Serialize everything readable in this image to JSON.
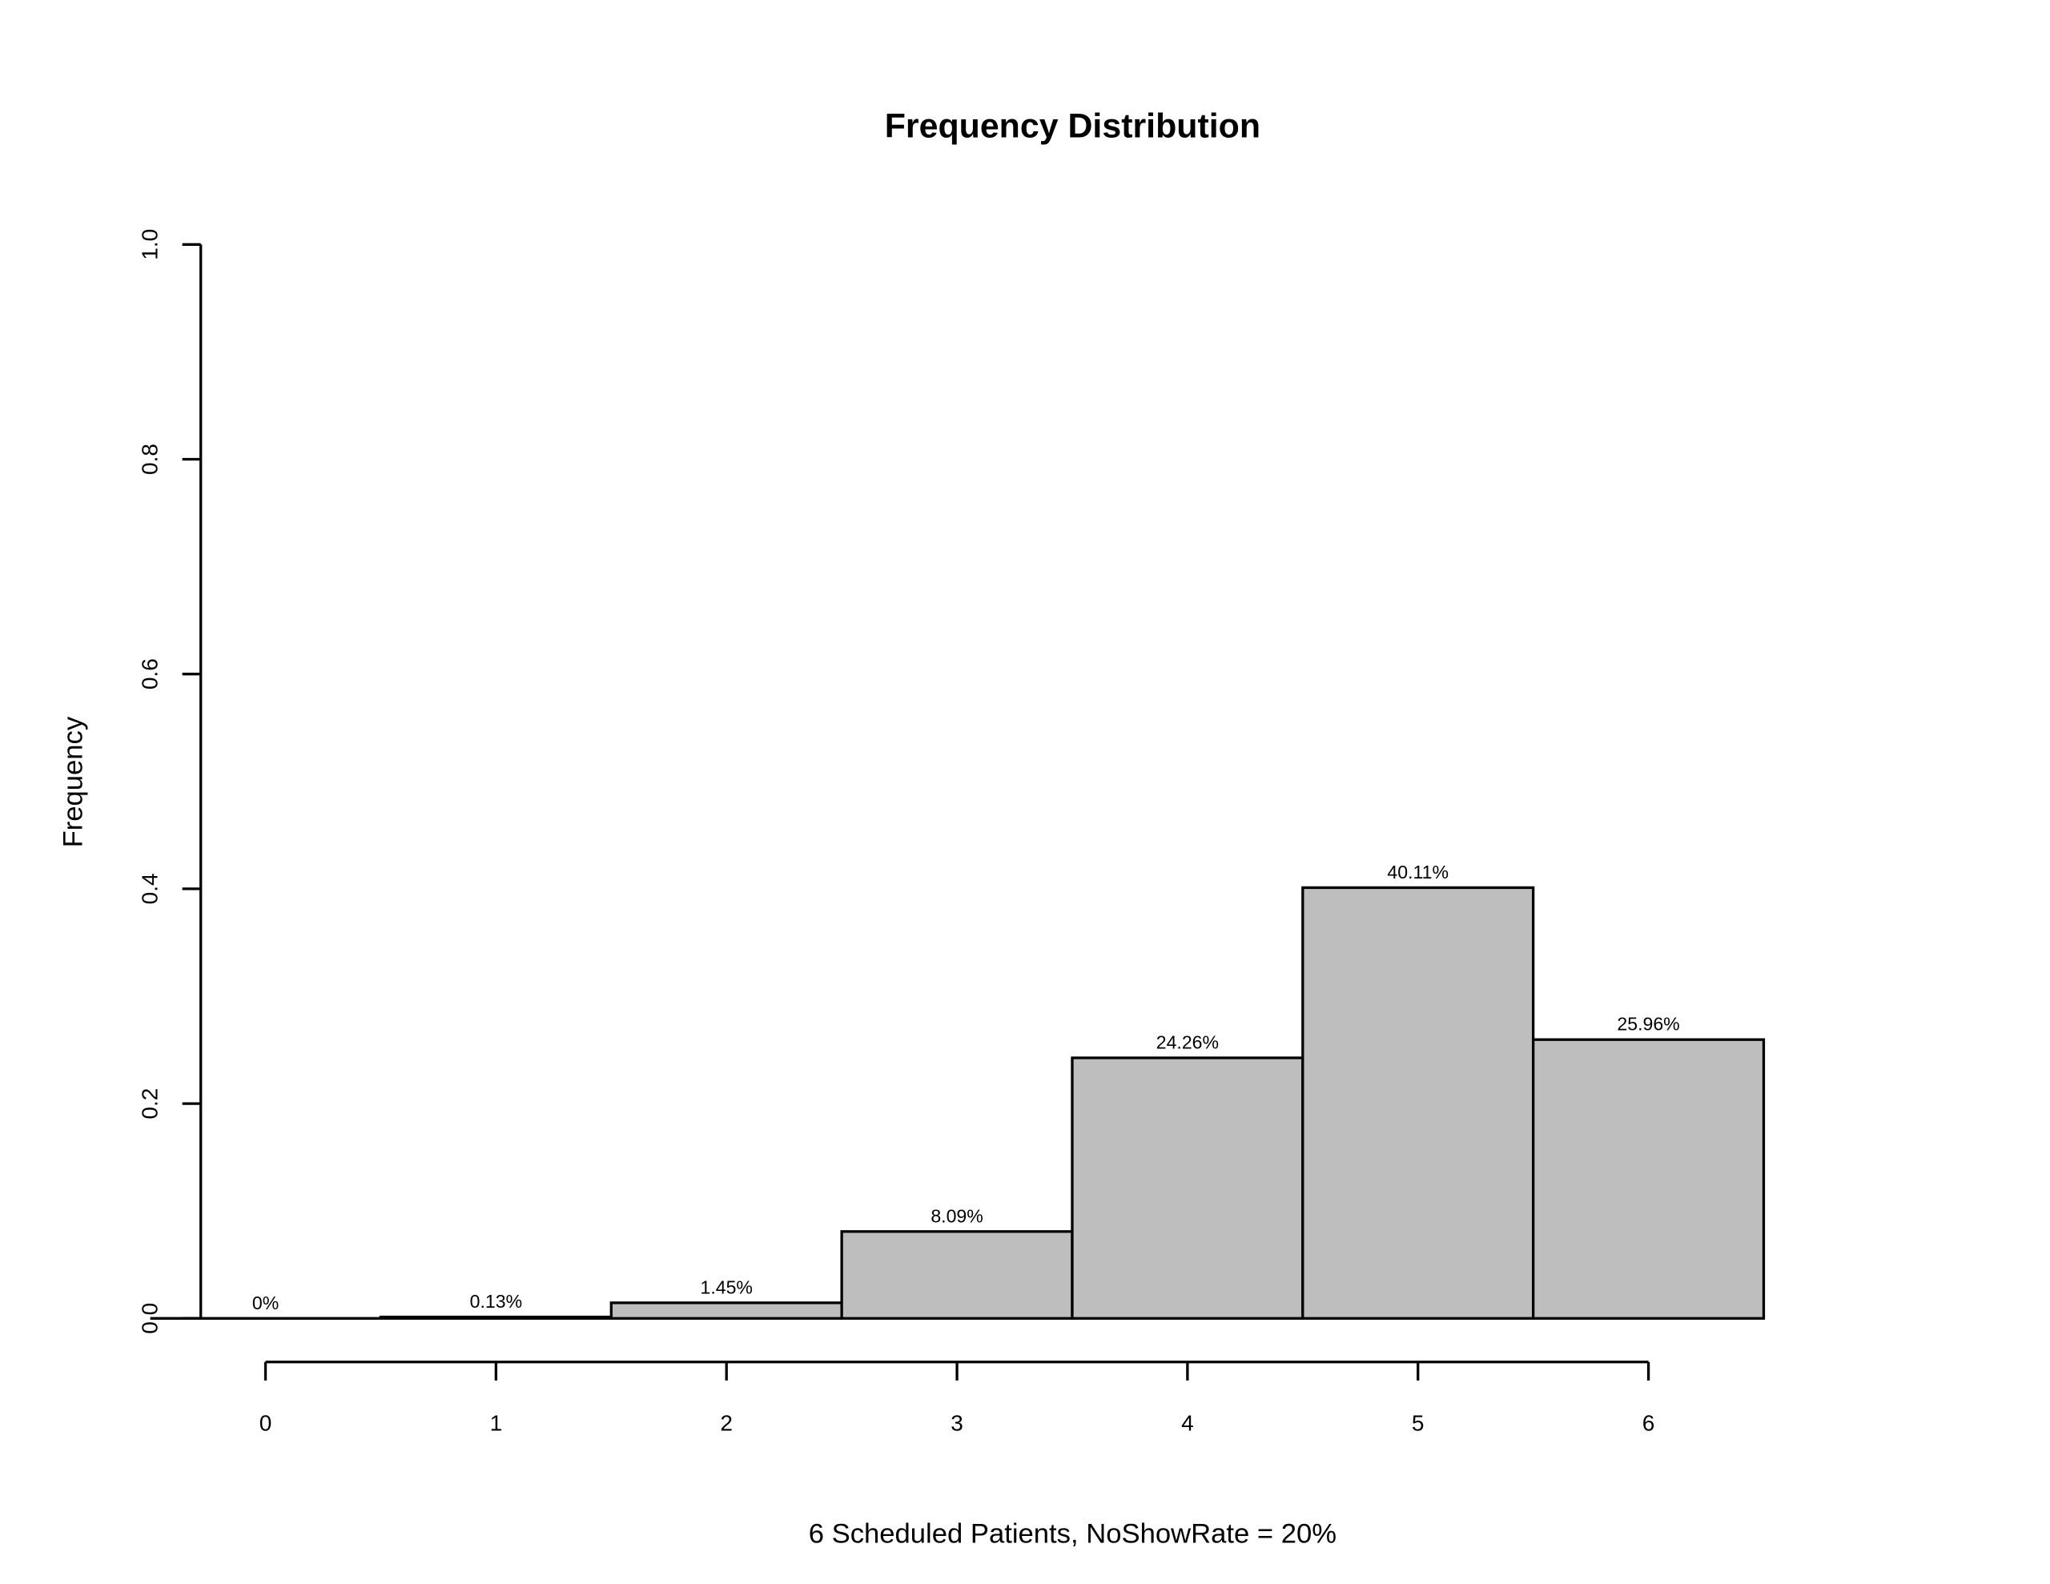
{
  "chart_data": {
    "type": "bar",
    "title": "Frequency Distribution",
    "xlabel": "6 Scheduled Patients,  NoShowRate = 20%",
    "ylabel": "Frequency",
    "categories": [
      "0",
      "1",
      "2",
      "3",
      "4",
      "5",
      "6"
    ],
    "values": [
      0,
      0.0013,
      0.0145,
      0.0809,
      0.2426,
      0.4011,
      0.2596
    ],
    "data_labels": [
      "0%",
      "0.13%",
      "1.45%",
      "8.09%",
      "24.26%",
      "40.11%",
      "25.96%"
    ],
    "ylim": [
      0,
      1.0
    ],
    "yticks": [
      "0.0",
      "0.2",
      "0.4",
      "0.6",
      "0.8",
      "1.0"
    ],
    "xticks": [
      "0",
      "1",
      "2",
      "3",
      "4",
      "5",
      "6"
    ],
    "grid": false,
    "bar_color": "#bebebe",
    "edge_color": "#000000"
  }
}
